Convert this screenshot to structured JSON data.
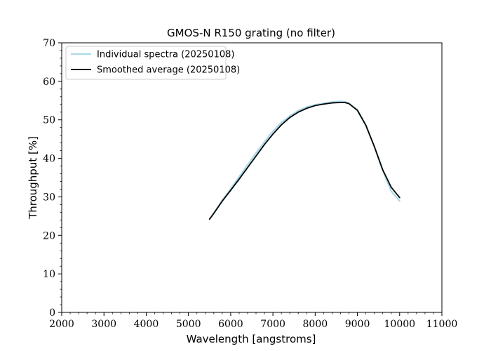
{
  "chart_data": {
    "type": "line",
    "title": "GMOS-N R150 grating (no filter)",
    "xlabel": "Wavelength [angstroms]",
    "ylabel": "Throughput [%]",
    "xlim": [
      2000,
      11000
    ],
    "ylim": [
      0,
      70
    ],
    "xticks": [
      2000,
      3000,
      4000,
      5000,
      6000,
      7000,
      8000,
      9000,
      10000,
      11000
    ],
    "yticks": [
      0,
      10,
      20,
      30,
      40,
      50,
      60,
      70
    ],
    "xtick_labels": [
      "2000",
      "3000",
      "4000",
      "5000",
      "6000",
      "7000",
      "8000",
      "9000",
      "10000",
      "11000"
    ],
    "ytick_labels": [
      "0",
      "10",
      "20",
      "30",
      "40",
      "50",
      "60",
      "70"
    ],
    "grid": false,
    "legend_position": "top-left",
    "series": [
      {
        "name": "Individual spectra (20250108)",
        "color": "#a8d8ea",
        "x": [
          5500,
          5600,
          5800,
          6000,
          6200,
          6400,
          6600,
          6800,
          7000,
          7200,
          7400,
          7600,
          7800,
          8000,
          8200,
          8400,
          8600,
          8700,
          8800,
          9000,
          9200,
          9400,
          9600,
          9800,
          10000
        ],
        "y": [
          24.3,
          25.8,
          29.1,
          32.1,
          35.2,
          38.3,
          41.4,
          44.3,
          47.0,
          49.3,
          51.0,
          52.4,
          53.3,
          53.9,
          54.3,
          54.6,
          54.8,
          54.7,
          54.3,
          52.4,
          48.5,
          43.0,
          36.8,
          31.5,
          28.9
        ]
      },
      {
        "name": "Smoothed average (20250108)",
        "color": "#000000",
        "x": [
          5500,
          5600,
          5800,
          6000,
          6200,
          6400,
          6600,
          6800,
          7000,
          7200,
          7400,
          7600,
          7800,
          8000,
          8200,
          8400,
          8600,
          8700,
          8800,
          9000,
          9200,
          9400,
          9600,
          9800,
          10000
        ],
        "y": [
          24.2,
          25.7,
          28.9,
          31.7,
          34.6,
          37.6,
          40.6,
          43.6,
          46.3,
          48.7,
          50.6,
          52.0,
          53.0,
          53.7,
          54.1,
          54.4,
          54.5,
          54.5,
          54.2,
          52.5,
          48.6,
          43.1,
          37.0,
          32.5,
          29.8
        ]
      }
    ]
  }
}
